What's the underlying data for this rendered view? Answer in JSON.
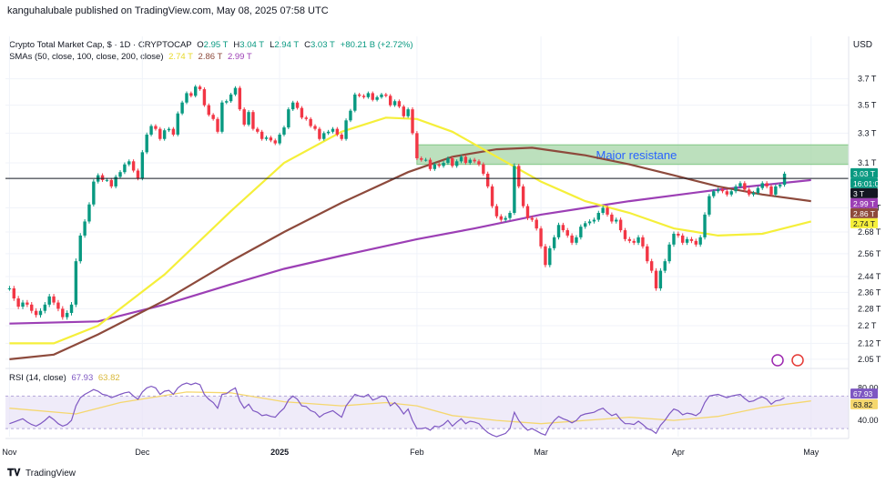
{
  "publisher": "kanguhalubale published on TradingView.com, May 08, 2025 07:58 UTC",
  "currency": "USD",
  "legend": {
    "title": "Crypto Total Market Cap, $ · 1D · CRYPTOCAP",
    "ohlc": [
      {
        "label": "O",
        "value": "2.95 T"
      },
      {
        "label": "H",
        "value": "3.04 T"
      },
      {
        "label": "L",
        "value": "2.94 T"
      },
      {
        "label": "C",
        "value": "3.03 T"
      },
      {
        "label": "",
        "value": "+80.21 B (+2.72%)"
      }
    ],
    "sma_label": "SMAs (50, close, 100, close, 200, close)",
    "sma_values": [
      "2.74 T",
      "2.86 T",
      "2.99 T"
    ],
    "rsi_label": "RSI (14, close)",
    "rsi_values": [
      "67.93",
      "63.82"
    ]
  },
  "annotation": "Major resistane",
  "footer_brand": "TradingView",
  "colors": {
    "up": "#089981",
    "down": "#f23645",
    "sma50": "#f5ef3a",
    "sma100": "#8d4a3c",
    "sma200": "#9c3fb5",
    "resistance_fill": "#a5d6a7",
    "rsi_line": "#7e57c2",
    "rsi_ma": "#f5d76e",
    "rsi_band": "#e8e3f7"
  },
  "chart_data": {
    "type": "candlestick",
    "title": "Crypto Total Market Cap, $ · 1D · CRYPTOCAP",
    "y_unit": "T",
    "price_axis": {
      "ticks": [
        "3.7 T",
        "3.5 T",
        "3.3 T",
        "3.1 T",
        "2.82 T",
        "2.68 T",
        "2.56 T",
        "2.44 T",
        "2.36 T",
        "2.28 T",
        "2.2 T",
        "2.12 T",
        "2.05 T"
      ],
      "tick_values": [
        3.7,
        3.5,
        3.3,
        3.1,
        2.82,
        2.68,
        2.56,
        2.44,
        2.36,
        2.28,
        2.2,
        2.12,
        2.05
      ],
      "scale": "log",
      "range": [
        2.03,
        3.82
      ]
    },
    "x_labels": [
      "Nov",
      "Dec",
      "2025",
      "Feb",
      "Mar",
      "Apr",
      "May"
    ],
    "x_label_index": [
      0,
      30,
      61,
      92,
      120,
      151,
      181
    ],
    "horizontal_line": 3.0,
    "resistance_zone": {
      "from": 3.09,
      "to": 3.22,
      "start_index": 92
    },
    "price_tags": [
      {
        "text": "3.03 T",
        "value": 3.03,
        "color": "#089981"
      },
      {
        "text": "16:01:09",
        "value": 2.995,
        "color": "#089981"
      },
      {
        "text": "3 T",
        "value": 3.0,
        "color": "#131722"
      },
      {
        "text": "2.99 T",
        "value": 2.99,
        "color": "#9c3fb5"
      },
      {
        "text": "2.86 T",
        "value": 2.86,
        "color": "#8d4a3c"
      },
      {
        "text": "2.74 T",
        "value": 2.74,
        "color": "#f5ef3a"
      }
    ],
    "closes": [
      2.38,
      2.33,
      2.29,
      2.31,
      2.3,
      2.27,
      2.25,
      2.27,
      2.3,
      2.34,
      2.31,
      2.28,
      2.24,
      2.26,
      2.3,
      2.52,
      2.66,
      2.74,
      2.84,
      2.98,
      3.02,
      2.99,
      2.99,
      2.95,
      3.01,
      3.04,
      3.09,
      3.11,
      3.05,
      3.0,
      3.17,
      3.29,
      3.35,
      3.33,
      3.26,
      3.32,
      3.33,
      3.29,
      3.44,
      3.52,
      3.59,
      3.57,
      3.64,
      3.62,
      3.5,
      3.43,
      3.4,
      3.31,
      3.52,
      3.53,
      3.58,
      3.63,
      3.47,
      3.36,
      3.45,
      3.33,
      3.31,
      3.26,
      3.27,
      3.25,
      3.23,
      3.29,
      3.34,
      3.47,
      3.52,
      3.48,
      3.41,
      3.4,
      3.35,
      3.33,
      3.26,
      3.3,
      3.31,
      3.33,
      3.29,
      3.26,
      3.39,
      3.46,
      3.58,
      3.57,
      3.56,
      3.59,
      3.54,
      3.56,
      3.58,
      3.57,
      3.5,
      3.53,
      3.49,
      3.42,
      3.47,
      3.3,
      3.13,
      3.12,
      3.12,
      3.06,
      3.09,
      3.08,
      3.1,
      3.13,
      3.08,
      3.11,
      3.14,
      3.1,
      3.12,
      3.11,
      3.09,
      3.03,
      2.95,
      2.83,
      2.77,
      2.75,
      2.76,
      2.79,
      3.08,
      2.95,
      2.83,
      2.76,
      2.75,
      2.7,
      2.6,
      2.5,
      2.59,
      2.65,
      2.72,
      2.69,
      2.66,
      2.62,
      2.65,
      2.71,
      2.73,
      2.74,
      2.75,
      2.79,
      2.82,
      2.78,
      2.74,
      2.75,
      2.69,
      2.64,
      2.63,
      2.62,
      2.65,
      2.6,
      2.52,
      2.47,
      2.38,
      2.47,
      2.52,
      2.61,
      2.67,
      2.66,
      2.62,
      2.64,
      2.63,
      2.61,
      2.65,
      2.78,
      2.89,
      2.92,
      2.93,
      2.92,
      2.9,
      2.92,
      2.95,
      2.97,
      2.93,
      2.9,
      2.91,
      2.94,
      2.97,
      2.95,
      2.9,
      2.95,
      2.96,
      3.03
    ],
    "sma50": [
      [
        0,
        2.12
      ],
      [
        10,
        2.12
      ],
      [
        20,
        2.2
      ],
      [
        35,
        2.45
      ],
      [
        50,
        2.8
      ],
      [
        62,
        3.1
      ],
      [
        75,
        3.31
      ],
      [
        85,
        3.41
      ],
      [
        92,
        3.4
      ],
      [
        100,
        3.31
      ],
      [
        110,
        3.14
      ],
      [
        120,
        2.98
      ],
      [
        130,
        2.86
      ],
      [
        140,
        2.79
      ],
      [
        150,
        2.7
      ],
      [
        160,
        2.66
      ],
      [
        170,
        2.67
      ],
      [
        181,
        2.74
      ]
    ],
    "sma100": [
      [
        0,
        2.05
      ],
      [
        10,
        2.07
      ],
      [
        20,
        2.16
      ],
      [
        35,
        2.32
      ],
      [
        50,
        2.52
      ],
      [
        62,
        2.68
      ],
      [
        75,
        2.85
      ],
      [
        90,
        3.04
      ],
      [
        100,
        3.14
      ],
      [
        110,
        3.19
      ],
      [
        118,
        3.2
      ],
      [
        130,
        3.15
      ],
      [
        140,
        3.09
      ],
      [
        150,
        3.02
      ],
      [
        160,
        2.95
      ],
      [
        170,
        2.9
      ],
      [
        181,
        2.86
      ]
    ],
    "sma200": [
      [
        0,
        2.21
      ],
      [
        20,
        2.22
      ],
      [
        35,
        2.3
      ],
      [
        50,
        2.4
      ],
      [
        62,
        2.48
      ],
      [
        75,
        2.55
      ],
      [
        92,
        2.64
      ],
      [
        105,
        2.7
      ],
      [
        120,
        2.78
      ],
      [
        140,
        2.86
      ],
      [
        160,
        2.93
      ],
      [
        181,
        2.99
      ]
    ],
    "rsi": {
      "axis_ticks": [
        "80.00",
        "40.00"
      ],
      "axis_tick_values": [
        80,
        40
      ],
      "band": [
        30,
        70
      ],
      "range": [
        20,
        95
      ],
      "values": [
        36,
        38,
        40,
        42,
        38,
        35,
        33,
        36,
        40,
        45,
        41,
        36,
        33,
        35,
        40,
        58,
        68,
        72,
        75,
        78,
        76,
        72,
        71,
        68,
        70,
        72,
        74,
        75,
        70,
        66,
        75,
        80,
        82,
        80,
        72,
        76,
        77,
        72,
        80,
        84,
        86,
        84,
        86,
        84,
        72,
        66,
        62,
        55,
        72,
        73,
        77,
        80,
        64,
        55,
        60,
        52,
        50,
        46,
        47,
        45,
        44,
        50,
        55,
        65,
        70,
        66,
        58,
        57,
        52,
        50,
        44,
        48,
        50,
        52,
        48,
        44,
        58,
        65,
        72,
        70,
        69,
        72,
        65,
        67,
        70,
        69,
        58,
        62,
        56,
        48,
        54,
        40,
        30,
        30,
        31,
        28,
        33,
        32,
        35,
        40,
        33,
        38,
        42,
        36,
        39,
        38,
        36,
        30,
        25,
        22,
        20,
        22,
        24,
        30,
        50,
        40,
        33,
        28,
        30,
        27,
        24,
        22,
        33,
        40,
        45,
        42,
        40,
        37,
        40,
        46,
        48,
        49,
        50,
        53,
        55,
        50,
        46,
        48,
        41,
        36,
        36,
        35,
        39,
        35,
        30,
        28,
        24,
        34,
        40,
        48,
        54,
        52,
        47,
        49,
        48,
        46,
        50,
        62,
        70,
        71,
        72,
        70,
        68,
        70,
        71,
        72,
        67,
        63,
        64,
        67,
        69,
        66,
        60,
        64,
        65,
        68
      ],
      "ma": [
        [
          0,
          55
        ],
        [
          15,
          48
        ],
        [
          25,
          62
        ],
        [
          40,
          75
        ],
        [
          50,
          74
        ],
        [
          62,
          63
        ],
        [
          75,
          58
        ],
        [
          85,
          62
        ],
        [
          92,
          58
        ],
        [
          100,
          46
        ],
        [
          110,
          40
        ],
        [
          120,
          36
        ],
        [
          130,
          40
        ],
        [
          140,
          44
        ],
        [
          150,
          40
        ],
        [
          160,
          45
        ],
        [
          170,
          56
        ],
        [
          181,
          64
        ]
      ]
    }
  }
}
